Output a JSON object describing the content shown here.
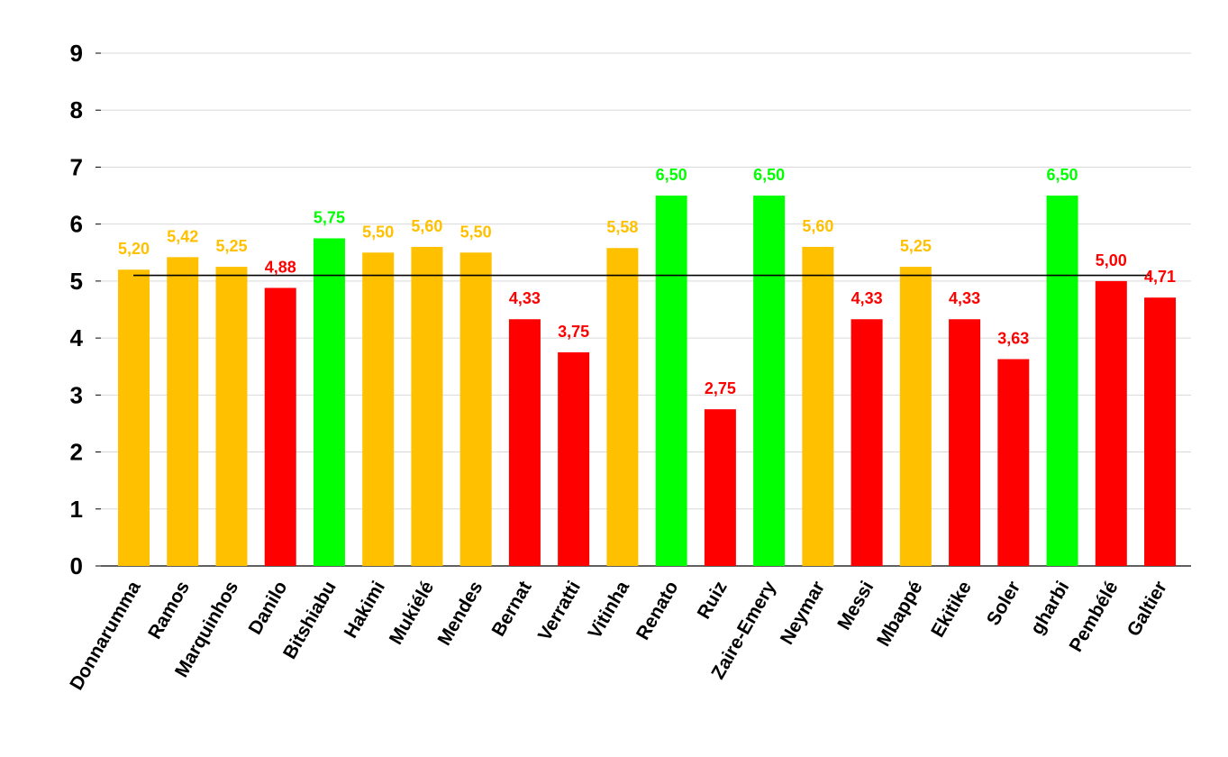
{
  "chart_data": {
    "type": "bar",
    "categories": [
      "Donnarumma",
      "Ramos",
      "Marquinhos",
      "Danilo",
      "Bitshiabu",
      "Hakimi",
      "Mukiélé",
      "Mendes",
      "Bernat",
      "Verratti",
      "Vitinha",
      "Renato",
      "Ruiz",
      "Zaire-Emery",
      "Neymar",
      "Messi",
      "Mbappé",
      "Ekitike",
      "Soler",
      "gharbi",
      "Pembélé",
      "Galtier"
    ],
    "values": [
      5.2,
      5.42,
      5.25,
      4.88,
      5.75,
      5.5,
      5.6,
      5.5,
      4.33,
      3.75,
      5.58,
      6.5,
      2.75,
      6.5,
      5.6,
      4.33,
      5.25,
      4.33,
      3.63,
      6.5,
      5.0,
      4.71
    ],
    "data_labels": [
      "5,20",
      "5,42",
      "5,25",
      "4,88",
      "5,75",
      "5,50",
      "5,60",
      "5,50",
      "4,33",
      "3,75",
      "5,58",
      "6,50",
      "2,75",
      "6,50",
      "5,60",
      "4,33",
      "5,25",
      "4,33",
      "3,63",
      "6,50",
      "5,00",
      "4,71"
    ],
    "bar_colors": [
      "#FFC000",
      "#FFC000",
      "#FFC000",
      "#FF0000",
      "#00FF00",
      "#FFC000",
      "#FFC000",
      "#FFC000",
      "#FF0000",
      "#FF0000",
      "#FFC000",
      "#00FF00",
      "#FF0000",
      "#00FF00",
      "#FFC000",
      "#FF0000",
      "#FFC000",
      "#FF0000",
      "#FF0000",
      "#00FF00",
      "#FF0000",
      "#FF0000"
    ],
    "reference_line": 5.1,
    "ylim": [
      0,
      9
    ],
    "yticks": [
      "0",
      "1",
      "2",
      "3",
      "4",
      "5",
      "6",
      "7",
      "8",
      "9"
    ],
    "grid": true,
    "title": "",
    "xlabel": "",
    "ylabel": ""
  },
  "colors": {
    "gridline": "#d9d9d9",
    "axis": "#000000",
    "reference_line": "#000000"
  }
}
